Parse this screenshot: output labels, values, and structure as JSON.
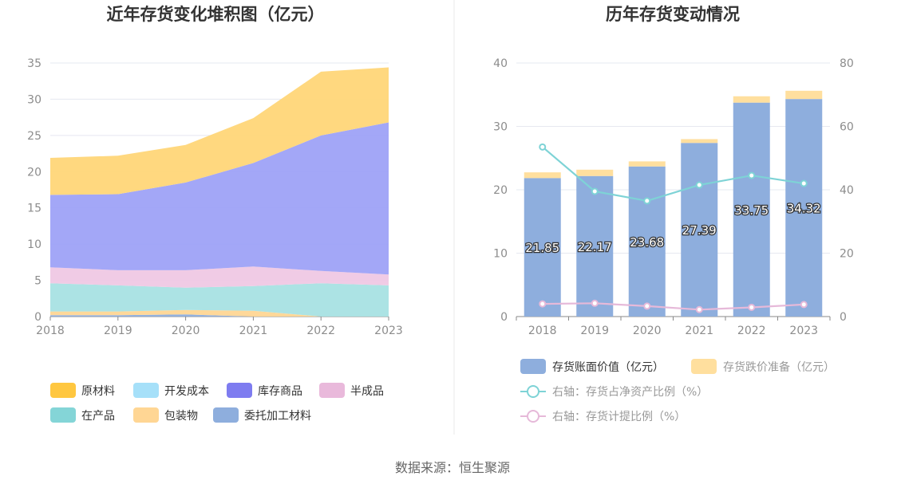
{
  "source_text": "数据来源：恒生聚源",
  "chart_data": [
    {
      "type": "area",
      "stacked": true,
      "title": "近年存货变化堆积图（亿元）",
      "x": [
        "2018",
        "2019",
        "2020",
        "2021",
        "2022",
        "2023"
      ],
      "ylim": [
        0,
        35
      ],
      "yticks": [
        0,
        5,
        10,
        15,
        20,
        25,
        30,
        35
      ],
      "grid": true,
      "legend_position": "bottom",
      "series": [
        {
          "name": "委托加工材料",
          "color": "#8eaedd",
          "values": [
            0.2,
            0.2,
            0.3,
            0.0,
            0.0,
            0.0
          ]
        },
        {
          "name": "包装物",
          "color": "#ffd694",
          "values": [
            0.5,
            0.5,
            0.6,
            0.8,
            0.0,
            0.0
          ]
        },
        {
          "name": "开发成本",
          "color": "#a6dcf5",
          "values": [
            0.0,
            0.0,
            0.0,
            0.0,
            0.0,
            0.0
          ]
        },
        {
          "name": "在产品",
          "color": "#a8e2e3",
          "values": [
            3.9,
            3.6,
            3.1,
            3.4,
            4.6,
            4.3
          ]
        },
        {
          "name": "半成品",
          "color": "#efc8e4",
          "values": [
            2.2,
            2.1,
            2.4,
            2.7,
            1.7,
            1.5
          ]
        },
        {
          "name": "库存商品",
          "color": "#9ea2f7",
          "values": [
            10.0,
            10.5,
            12.1,
            14.3,
            18.7,
            21.0
          ]
        },
        {
          "name": "原材料",
          "color": "#ffd678",
          "values": [
            5.1,
            5.3,
            5.2,
            6.2,
            8.8,
            7.6
          ]
        }
      ],
      "legend_order": [
        "原材料",
        "开发成本",
        "库存商品",
        "半成品",
        "在产品",
        "包装物",
        "委托加工材料"
      ],
      "legend_swatch_colors": {
        "原材料": "#ffc740",
        "开发成本": "#a6e0f9",
        "库存商品": "#7e7cf0",
        "半成品": "#e9b9db",
        "在产品": "#84d5d7",
        "包装物": "#ffd694",
        "委托加工材料": "#8eaedd"
      }
    },
    {
      "type": "bar",
      "stacked": true,
      "title": "历年存货变动情况",
      "categories": [
        "2018",
        "2019",
        "2020",
        "2021",
        "2022",
        "2023"
      ],
      "ylim": [
        0,
        40
      ],
      "yticks": [
        0,
        10,
        20,
        30,
        40
      ],
      "y2lim": [
        0,
        80
      ],
      "y2ticks": [
        0,
        20,
        40,
        60,
        80
      ],
      "grid": true,
      "legend_position": "bottom",
      "series": [
        {
          "name": "存货账面价值（亿元）",
          "type": "bar",
          "color": "#8eaedd",
          "values": [
            21.85,
            22.17,
            23.68,
            27.39,
            33.75,
            34.32
          ],
          "labels": [
            "21.85",
            "22.17",
            "23.68",
            "27.39",
            "33.75",
            "34.32"
          ]
        },
        {
          "name": "存货跌价准备（亿元）",
          "type": "bar",
          "color": "#ffdf9e",
          "values": [
            0.9,
            1.0,
            0.8,
            0.6,
            1.0,
            1.3
          ]
        },
        {
          "name": "右轴：存货占净资产比例（%）",
          "type": "line",
          "axis": "right",
          "color": "#7ed3d6",
          "values": [
            53.5,
            39.5,
            36.5,
            41.5,
            44.5,
            42.0
          ]
        },
        {
          "name": "右轴：存货计提比例（%）",
          "type": "line",
          "axis": "right",
          "color": "#e6b9d9",
          "values": [
            4.0,
            4.2,
            3.3,
            2.2,
            2.9,
            3.8
          ]
        }
      ]
    }
  ]
}
